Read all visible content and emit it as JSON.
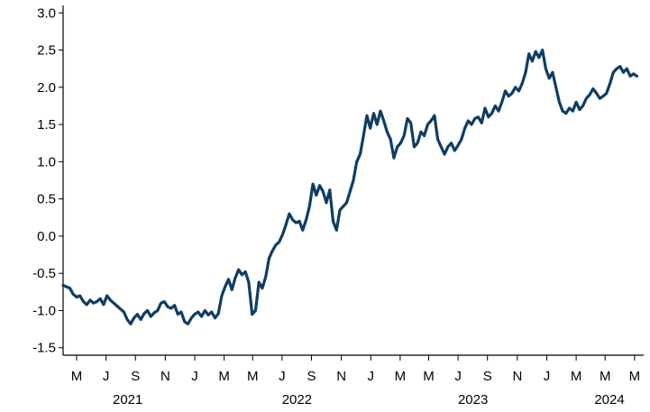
{
  "chart_data": {
    "type": "line",
    "title": "",
    "xlabel": "",
    "ylabel": "",
    "xlim": [
      "2021-02-01",
      "2024-05-20"
    ],
    "ylim": [
      -1.6,
      3.1
    ],
    "yticks": [
      -1.5,
      -1.0,
      -0.5,
      0.0,
      0.5,
      1.0,
      1.5,
      2.0,
      2.5,
      3.0
    ],
    "ytick_labels": [
      "-1.5",
      "-1.0",
      "-0.5",
      "0.0",
      "0.5",
      "1.0",
      "1.5",
      "2.0",
      "2.5",
      "3.0"
    ],
    "xticks": [
      {
        "date": "2021-03-01",
        "label": "M"
      },
      {
        "date": "2021-05-01",
        "label": "J"
      },
      {
        "date": "2021-07-01",
        "label": "S"
      },
      {
        "date": "2021-09-01",
        "label": "N"
      },
      {
        "date": "2021-11-01",
        "label": "J"
      },
      {
        "date": "2022-01-01",
        "label": "M"
      },
      {
        "date": "2022-03-01",
        "label": "M"
      },
      {
        "date": "2022-05-01",
        "label": "J"
      },
      {
        "date": "2022-07-01",
        "label": "S"
      },
      {
        "date": "2022-09-01",
        "label": "N"
      },
      {
        "date": "2022-11-01",
        "label": "J"
      },
      {
        "date": "2023-01-01",
        "label": "M"
      },
      {
        "date": "2023-03-01",
        "label": "M"
      },
      {
        "date": "2023-05-01",
        "label": "J"
      },
      {
        "date": "2023-07-01",
        "label": "S"
      },
      {
        "date": "2023-09-01",
        "label": "N"
      },
      {
        "date": "2023-11-01",
        "label": "J"
      },
      {
        "date": "2024-01-01",
        "label": "M"
      },
      {
        "date": "2024-03-01",
        "label": "M"
      },
      {
        "date": "2024-05-01",
        "label": "M"
      }
    ],
    "year_labels": [
      {
        "date": "2021-06-15",
        "label": "2021"
      },
      {
        "date": "2022-06-01",
        "label": "2022"
      },
      {
        "date": "2023-06-01",
        "label": "2023"
      },
      {
        "date": "2024-03-10",
        "label": "2024"
      }
    ],
    "grid": false,
    "legend": "none",
    "series": [
      {
        "color": "#0d3d66",
        "points": [
          [
            "2021-02-01",
            -0.66
          ],
          [
            "2021-02-08",
            -0.68
          ],
          [
            "2021-02-15",
            -0.7
          ],
          [
            "2021-02-22",
            -0.78
          ],
          [
            "2021-03-01",
            -0.82
          ],
          [
            "2021-03-08",
            -0.8
          ],
          [
            "2021-03-15",
            -0.88
          ],
          [
            "2021-03-22",
            -0.92
          ],
          [
            "2021-03-29",
            -0.86
          ],
          [
            "2021-04-05",
            -0.9
          ],
          [
            "2021-04-12",
            -0.88
          ],
          [
            "2021-04-19",
            -0.84
          ],
          [
            "2021-04-26",
            -0.92
          ],
          [
            "2021-05-03",
            -0.8
          ],
          [
            "2021-05-10",
            -0.86
          ],
          [
            "2021-05-17",
            -0.9
          ],
          [
            "2021-05-24",
            -0.94
          ],
          [
            "2021-05-31",
            -0.98
          ],
          [
            "2021-06-07",
            -1.02
          ],
          [
            "2021-06-14",
            -1.12
          ],
          [
            "2021-06-21",
            -1.18
          ],
          [
            "2021-06-28",
            -1.1
          ],
          [
            "2021-07-05",
            -1.05
          ],
          [
            "2021-07-12",
            -1.12
          ],
          [
            "2021-07-19",
            -1.04
          ],
          [
            "2021-07-26",
            -1.0
          ],
          [
            "2021-08-02",
            -1.08
          ],
          [
            "2021-08-09",
            -1.03
          ],
          [
            "2021-08-16",
            -1.0
          ],
          [
            "2021-08-23",
            -0.9
          ],
          [
            "2021-08-30",
            -0.88
          ],
          [
            "2021-09-06",
            -0.95
          ],
          [
            "2021-09-13",
            -0.97
          ],
          [
            "2021-09-20",
            -0.93
          ],
          [
            "2021-09-27",
            -1.05
          ],
          [
            "2021-10-04",
            -1.02
          ],
          [
            "2021-10-11",
            -1.15
          ],
          [
            "2021-10-18",
            -1.18
          ],
          [
            "2021-10-25",
            -1.1
          ],
          [
            "2021-11-01",
            -1.05
          ],
          [
            "2021-11-08",
            -1.02
          ],
          [
            "2021-11-15",
            -1.08
          ],
          [
            "2021-11-22",
            -1.0
          ],
          [
            "2021-11-29",
            -1.06
          ],
          [
            "2021-12-06",
            -1.02
          ],
          [
            "2021-12-13",
            -1.1
          ],
          [
            "2021-12-20",
            -1.04
          ],
          [
            "2021-12-27",
            -0.8
          ],
          [
            "2022-01-03",
            -0.68
          ],
          [
            "2022-01-10",
            -0.58
          ],
          [
            "2022-01-17",
            -0.72
          ],
          [
            "2022-01-24",
            -0.56
          ],
          [
            "2022-01-31",
            -0.45
          ],
          [
            "2022-02-07",
            -0.52
          ],
          [
            "2022-02-14",
            -0.48
          ],
          [
            "2022-02-21",
            -0.62
          ],
          [
            "2022-02-28",
            -1.05
          ],
          [
            "2022-03-07",
            -1.0
          ],
          [
            "2022-03-14",
            -0.62
          ],
          [
            "2022-03-21",
            -0.7
          ],
          [
            "2022-03-28",
            -0.55
          ],
          [
            "2022-04-04",
            -0.3
          ],
          [
            "2022-04-11",
            -0.2
          ],
          [
            "2022-04-18",
            -0.12
          ],
          [
            "2022-04-25",
            -0.08
          ],
          [
            "2022-05-02",
            0.02
          ],
          [
            "2022-05-09",
            0.15
          ],
          [
            "2022-05-16",
            0.3
          ],
          [
            "2022-05-23",
            0.22
          ],
          [
            "2022-05-30",
            0.18
          ],
          [
            "2022-06-06",
            0.2
          ],
          [
            "2022-06-13",
            0.08
          ],
          [
            "2022-06-20",
            0.22
          ],
          [
            "2022-06-27",
            0.4
          ],
          [
            "2022-07-04",
            0.7
          ],
          [
            "2022-07-11",
            0.55
          ],
          [
            "2022-07-18",
            0.68
          ],
          [
            "2022-07-25",
            0.6
          ],
          [
            "2022-08-01",
            0.45
          ],
          [
            "2022-08-08",
            0.62
          ],
          [
            "2022-08-15",
            0.2
          ],
          [
            "2022-08-22",
            0.08
          ],
          [
            "2022-08-29",
            0.35
          ],
          [
            "2022-09-05",
            0.4
          ],
          [
            "2022-09-12",
            0.45
          ],
          [
            "2022-09-19",
            0.6
          ],
          [
            "2022-09-26",
            0.75
          ],
          [
            "2022-10-03",
            1.0
          ],
          [
            "2022-10-10",
            1.1
          ],
          [
            "2022-10-17",
            1.35
          ],
          [
            "2022-10-24",
            1.62
          ],
          [
            "2022-10-31",
            1.45
          ],
          [
            "2022-11-07",
            1.65
          ],
          [
            "2022-11-14",
            1.5
          ],
          [
            "2022-11-21",
            1.68
          ],
          [
            "2022-11-28",
            1.55
          ],
          [
            "2022-12-05",
            1.4
          ],
          [
            "2022-12-12",
            1.3
          ],
          [
            "2022-12-19",
            1.05
          ],
          [
            "2022-12-26",
            1.2
          ],
          [
            "2023-01-02",
            1.25
          ],
          [
            "2023-01-09",
            1.35
          ],
          [
            "2023-01-16",
            1.58
          ],
          [
            "2023-01-23",
            1.52
          ],
          [
            "2023-01-30",
            1.2
          ],
          [
            "2023-02-06",
            1.25
          ],
          [
            "2023-02-13",
            1.4
          ],
          [
            "2023-02-20",
            1.35
          ],
          [
            "2023-02-27",
            1.5
          ],
          [
            "2023-03-06",
            1.55
          ],
          [
            "2023-03-13",
            1.62
          ],
          [
            "2023-03-20",
            1.3
          ],
          [
            "2023-03-27",
            1.2
          ],
          [
            "2023-04-03",
            1.1
          ],
          [
            "2023-04-10",
            1.2
          ],
          [
            "2023-04-17",
            1.25
          ],
          [
            "2023-04-24",
            1.15
          ],
          [
            "2023-05-01",
            1.22
          ],
          [
            "2023-05-08",
            1.3
          ],
          [
            "2023-05-15",
            1.45
          ],
          [
            "2023-05-22",
            1.55
          ],
          [
            "2023-05-29",
            1.5
          ],
          [
            "2023-06-05",
            1.58
          ],
          [
            "2023-06-12",
            1.6
          ],
          [
            "2023-06-19",
            1.52
          ],
          [
            "2023-06-26",
            1.72
          ],
          [
            "2023-07-03",
            1.6
          ],
          [
            "2023-07-10",
            1.65
          ],
          [
            "2023-07-17",
            1.75
          ],
          [
            "2023-07-24",
            1.68
          ],
          [
            "2023-07-31",
            1.8
          ],
          [
            "2023-08-07",
            1.95
          ],
          [
            "2023-08-14",
            1.88
          ],
          [
            "2023-08-21",
            1.92
          ],
          [
            "2023-08-28",
            2.0
          ],
          [
            "2023-09-04",
            1.95
          ],
          [
            "2023-09-11",
            2.05
          ],
          [
            "2023-09-18",
            2.2
          ],
          [
            "2023-09-25",
            2.45
          ],
          [
            "2023-10-02",
            2.35
          ],
          [
            "2023-10-09",
            2.48
          ],
          [
            "2023-10-16",
            2.4
          ],
          [
            "2023-10-23",
            2.5
          ],
          [
            "2023-10-30",
            2.25
          ],
          [
            "2023-11-06",
            2.12
          ],
          [
            "2023-11-13",
            2.2
          ],
          [
            "2023-11-20",
            2.0
          ],
          [
            "2023-11-27",
            1.8
          ],
          [
            "2023-12-04",
            1.68
          ],
          [
            "2023-12-11",
            1.65
          ],
          [
            "2023-12-18",
            1.72
          ],
          [
            "2023-12-25",
            1.68
          ],
          [
            "2024-01-01",
            1.8
          ],
          [
            "2024-01-08",
            1.7
          ],
          [
            "2024-01-15",
            1.75
          ],
          [
            "2024-01-22",
            1.85
          ],
          [
            "2024-01-29",
            1.9
          ],
          [
            "2024-02-05",
            1.98
          ],
          [
            "2024-02-12",
            1.92
          ],
          [
            "2024-02-19",
            1.85
          ],
          [
            "2024-02-26",
            1.88
          ],
          [
            "2024-03-04",
            1.92
          ],
          [
            "2024-03-11",
            2.05
          ],
          [
            "2024-03-18",
            2.2
          ],
          [
            "2024-03-25",
            2.25
          ],
          [
            "2024-04-01",
            2.28
          ],
          [
            "2024-04-08",
            2.2
          ],
          [
            "2024-04-15",
            2.25
          ],
          [
            "2024-04-22",
            2.15
          ],
          [
            "2024-04-29",
            2.18
          ],
          [
            "2024-05-06",
            2.15
          ]
        ]
      }
    ]
  }
}
